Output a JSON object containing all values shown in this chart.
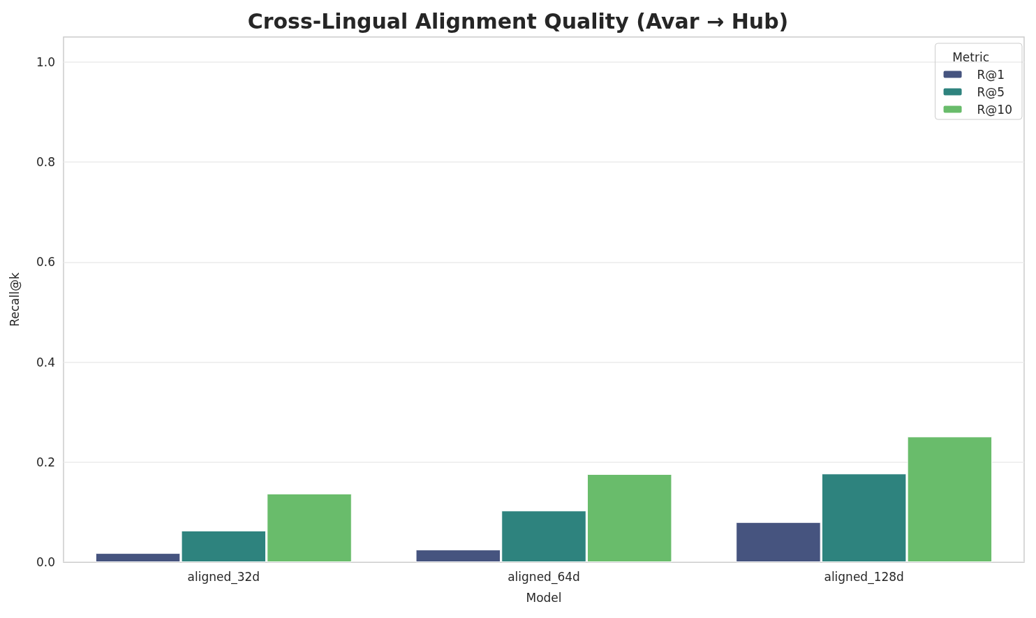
{
  "chart_data": {
    "type": "bar",
    "title": "Cross-Lingual Alignment Quality (Avar → Hub)",
    "xlabel": "Model",
    "ylabel": "Recall@k",
    "legend_title": "Metric",
    "categories": [
      "aligned_32d",
      "aligned_64d",
      "aligned_128d"
    ],
    "series": [
      {
        "name": "R@1",
        "color": "#46547f",
        "values": [
          0.018,
          0.025,
          0.08
        ]
      },
      {
        "name": "R@5",
        "color": "#2e837e",
        "values": [
          0.063,
          0.103,
          0.177
        ]
      },
      {
        "name": "R@10",
        "color": "#69bc6b",
        "values": [
          0.137,
          0.176,
          0.251
        ]
      }
    ],
    "ylim": [
      0,
      1.05
    ],
    "yticks": [
      {
        "value": 0,
        "label": "0.0"
      },
      {
        "value": 0.2,
        "label": "0.2"
      },
      {
        "value": 0.4,
        "label": "0.4"
      },
      {
        "value": 0.6,
        "label": "0.6"
      },
      {
        "value": 0.8,
        "label": "0.8"
      },
      {
        "value": 1,
        "label": "1.0"
      }
    ],
    "grid": "y",
    "legend": "top right"
  }
}
